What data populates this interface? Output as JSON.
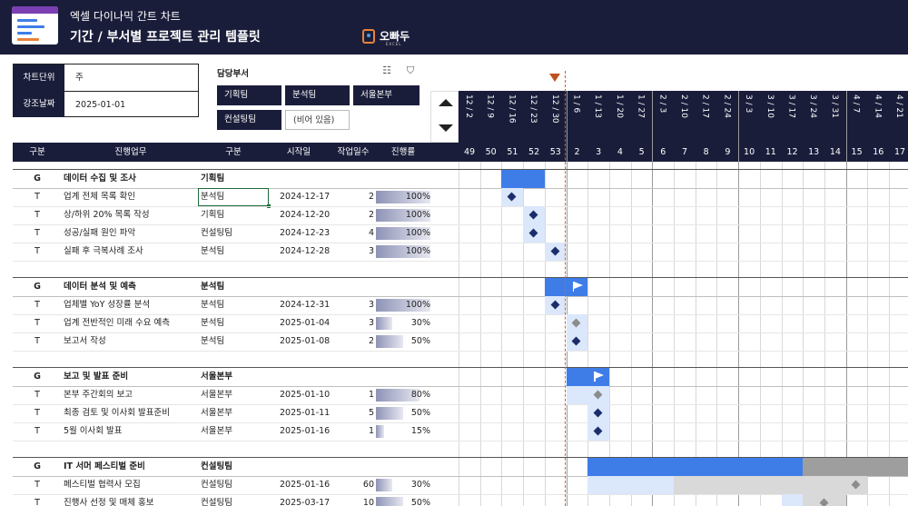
{
  "header": {
    "title_line1": "엑셀 다이나믹 간트 차트",
    "title_line2": "기간 / 부서별 프로젝트 관리 템플릿",
    "brand_name": "오빠두",
    "brand_sub": "EXCEL"
  },
  "settings": {
    "chart_unit_label": "차트단위",
    "chart_unit_value": "주",
    "highlight_date_label": "강조날짜",
    "highlight_date_value": "2025-01-01"
  },
  "slicer": {
    "title": "담당부서",
    "multi_select_icon": "multi-select-icon",
    "clear_filter_icon": "clear-filter-icon",
    "buttons": [
      {
        "label": "기획팀",
        "selected": true
      },
      {
        "label": "분석팀",
        "selected": true
      },
      {
        "label": "서울본부",
        "selected": true
      },
      {
        "label": "컨설팅팀",
        "selected": true
      },
      {
        "label": "(비어 있음)",
        "selected": false
      }
    ]
  },
  "columns": {
    "type": "구분",
    "task": "진행업무",
    "dept": "구분",
    "start": "시작일",
    "days": "작업일수",
    "progress": "진행률"
  },
  "timeline": {
    "dates": [
      "12 / 2",
      "12 / 9",
      "12 / 16",
      "12 / 23",
      "12 / 30",
      "1 / 6",
      "1 / 13",
      "1 / 20",
      "1 / 27",
      "2 / 3",
      "2 / 10",
      "2 / 17",
      "2 / 24",
      "3 / 3",
      "3 / 10",
      "3 / 17",
      "3 / 24",
      "3 / 31",
      "4 / 7",
      "4 / 14",
      "4 / 21"
    ],
    "weeks": [
      "49",
      "50",
      "51",
      "52",
      "53",
      "2",
      "3",
      "4",
      "5",
      "6",
      "7",
      "8",
      "9",
      "10",
      "11",
      "12",
      "13",
      "14",
      "15",
      "16",
      "17"
    ]
  },
  "groups": [
    {
      "type": "G",
      "name": "데이터 수집 및 조사",
      "dept": "기획팀",
      "tasks": [
        {
          "type": "T",
          "name": "업계 전체 목록 확인",
          "dept": "분석팀",
          "start": "2024-12-17",
          "days": "2",
          "progress": "100%",
          "progress_value": 1.0
        },
        {
          "type": "T",
          "name": "상/하위 20% 목록 작성",
          "dept": "기획팀",
          "start": "2024-12-20",
          "days": "2",
          "progress": "100%",
          "progress_value": 1.0
        },
        {
          "type": "T",
          "name": "성공/실패 원인 파악",
          "dept": "컨설팅팀",
          "start": "2024-12-23",
          "days": "4",
          "progress": "100%",
          "progress_value": 1.0
        },
        {
          "type": "T",
          "name": "실패 후 극복사례 조사",
          "dept": "분석팀",
          "start": "2024-12-28",
          "days": "3",
          "progress": "100%",
          "progress_value": 1.0
        }
      ]
    },
    {
      "type": "G",
      "name": "데이터 분석 및 예측",
      "dept": "분석팀",
      "tasks": [
        {
          "type": "T",
          "name": "업체별 YoY 성장률 분석",
          "dept": "분석팀",
          "start": "2024-12-31",
          "days": "3",
          "progress": "100%",
          "progress_value": 1.0
        },
        {
          "type": "T",
          "name": "업계 전반적인 미래 수요 예측",
          "dept": "분석팀",
          "start": "2025-01-04",
          "days": "3",
          "progress": "30%",
          "progress_value": 0.3
        },
        {
          "type": "T",
          "name": "보고서 작성",
          "dept": "분석팀",
          "start": "2025-01-08",
          "days": "2",
          "progress": "50%",
          "progress_value": 0.5
        }
      ]
    },
    {
      "type": "G",
      "name": "보고 및 발표 준비",
      "dept": "서울본부",
      "tasks": [
        {
          "type": "T",
          "name": "본부 주간회의 보고",
          "dept": "서울본부",
          "start": "2025-01-10",
          "days": "1",
          "progress": "80%",
          "progress_value": 0.8
        },
        {
          "type": "T",
          "name": "최종 검토 및 이사회 발표준비",
          "dept": "서울본부",
          "start": "2025-01-11",
          "days": "5",
          "progress": "50%",
          "progress_value": 0.5
        },
        {
          "type": "T",
          "name": "5월 이사회 발표",
          "dept": "서울본부",
          "start": "2025-01-16",
          "days": "1",
          "progress": "15%",
          "progress_value": 0.15
        }
      ]
    },
    {
      "type": "G",
      "name": "IT 서머 페스티벌 준비",
      "dept": "컨설팅팀",
      "tasks": [
        {
          "type": "T",
          "name": "페스티벌 협력사 모집",
          "dept": "컨설팅팀",
          "start": "2025-01-16",
          "days": "60",
          "progress": "30%",
          "progress_value": 0.3
        },
        {
          "type": "T",
          "name": "진행사 선정 및 매체 홍보",
          "dept": "컨설팅팀",
          "start": "2025-03-17",
          "days": "10",
          "progress": "50%",
          "progress_value": 0.5
        }
      ]
    }
  ],
  "colors": {
    "header_bg": "#1a1d3a",
    "group_bar": "#3e7de8",
    "task_done": "#dbe7fb",
    "task_remain": "#d9d9d9",
    "milestone_done": "#1b2e6b",
    "milestone_pending": "#8c8c8c",
    "today_marker": "#c0501e"
  }
}
